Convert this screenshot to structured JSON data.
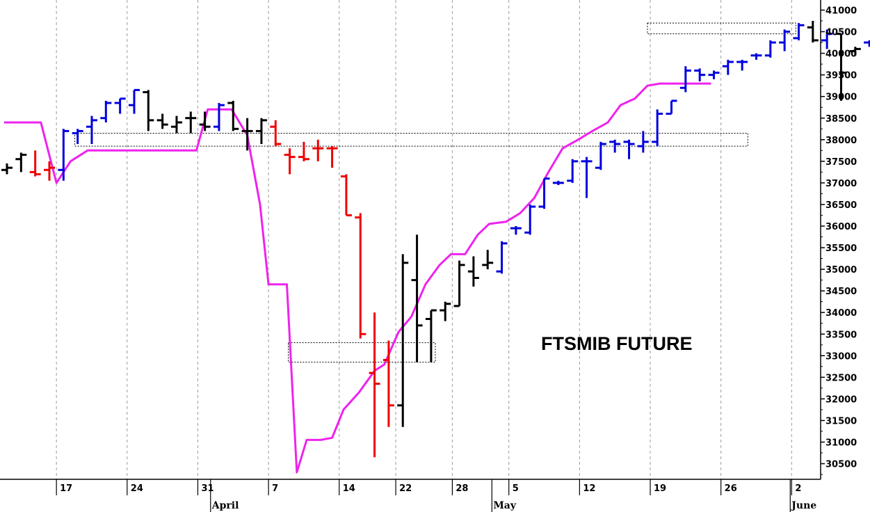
{
  "chart_data": {
    "type": "bar",
    "title": "FTSMIB FUTURE",
    "xlabel": "",
    "ylabel": "",
    "ylim": [
      30100,
      41100
    ],
    "grid": true,
    "y_ticks": [
      30500,
      31000,
      31500,
      32000,
      32500,
      33000,
      33500,
      34000,
      34500,
      35000,
      35500,
      36000,
      36500,
      37000,
      37500,
      38000,
      38500,
      39000,
      39500,
      40000,
      40500,
      41000
    ],
    "x_ticks": [
      {
        "label": "17",
        "idx": 3.5
      },
      {
        "label": "24",
        "idx": 8.5
      },
      {
        "label": "31",
        "idx": 13.5
      },
      {
        "label": "7",
        "idx": 18.5
      },
      {
        "label": "14",
        "idx": 23.5
      },
      {
        "label": "22",
        "idx": 27.5
      },
      {
        "label": "28",
        "idx": 31.5
      },
      {
        "label": "5",
        "idx": 35.5
      },
      {
        "label": "12",
        "idx": 40.5
      },
      {
        "label": "19",
        "idx": 45.5
      },
      {
        "label": "26",
        "idx": 50.5
      },
      {
        "label": "2",
        "idx": 55.5
      }
    ],
    "month_labels": [
      {
        "label": "April",
        "idx": 14.4
      },
      {
        "label": "May",
        "idx": 34.3
      },
      {
        "label": "June",
        "idx": 55.4
      }
    ],
    "series": [
      {
        "kind": "ohlc",
        "colors": {
          "up": "#0000dd",
          "neutral": "#000000",
          "down": "#ee0000"
        },
        "bars": [
          {
            "o": 37300,
            "h": 37450,
            "l": 37200,
            "c": 37350,
            "k": "neutral"
          },
          {
            "o": 37550,
            "h": 37700,
            "l": 37250,
            "c": 37650,
            "k": "neutral"
          },
          {
            "o": 37250,
            "h": 37750,
            "l": 37150,
            "c": 37200,
            "k": "down"
          },
          {
            "o": 37300,
            "h": 37500,
            "l": 37050,
            "c": 37350,
            "k": "down"
          },
          {
            "o": 37300,
            "h": 38250,
            "l": 37050,
            "c": 38200,
            "k": "up"
          },
          {
            "o": 38150,
            "h": 38250,
            "l": 37900,
            "c": 38200,
            "k": "up"
          },
          {
            "o": 38300,
            "h": 38550,
            "l": 37900,
            "c": 38450,
            "k": "up"
          },
          {
            "o": 38500,
            "h": 38900,
            "l": 38400,
            "c": 38850,
            "k": "up"
          },
          {
            "o": 38850,
            "h": 38950,
            "l": 38600,
            "c": 38950,
            "k": "up"
          },
          {
            "o": 38800,
            "h": 39150,
            "l": 38600,
            "c": 39150,
            "k": "up"
          },
          {
            "o": 39100,
            "h": 39150,
            "l": 38200,
            "c": 38450,
            "k": "neutral"
          },
          {
            "o": 38450,
            "h": 38600,
            "l": 38250,
            "c": 38350,
            "k": "neutral"
          },
          {
            "o": 38300,
            "h": 38550,
            "l": 38150,
            "c": 38400,
            "k": "neutral"
          },
          {
            "o": 38500,
            "h": 38650,
            "l": 38150,
            "c": 38500,
            "k": "neutral"
          },
          {
            "o": 38350,
            "h": 38650,
            "l": 38200,
            "c": 38300,
            "k": "neutral"
          },
          {
            "o": 38300,
            "h": 38850,
            "l": 38200,
            "c": 38800,
            "k": "up"
          },
          {
            "o": 38850,
            "h": 38900,
            "l": 38200,
            "c": 38250,
            "k": "neutral"
          },
          {
            "o": 38200,
            "h": 38500,
            "l": 37750,
            "c": 38200,
            "k": "neutral"
          },
          {
            "o": 38200,
            "h": 38500,
            "l": 37900,
            "c": 38450,
            "k": "neutral"
          },
          {
            "o": 38300,
            "h": 38450,
            "l": 37850,
            "c": 37900,
            "k": "down"
          },
          {
            "o": 37650,
            "h": 37800,
            "l": 37200,
            "c": 37600,
            "k": "down"
          },
          {
            "o": 37600,
            "h": 37950,
            "l": 37500,
            "c": 37550,
            "k": "down"
          },
          {
            "o": 37800,
            "h": 38000,
            "l": 37500,
            "c": 37800,
            "k": "down"
          },
          {
            "o": 37800,
            "h": 37850,
            "l": 37350,
            "c": 37800,
            "k": "down"
          },
          {
            "o": 37150,
            "h": 37200,
            "l": 36250,
            "c": 36250,
            "k": "down"
          },
          {
            "o": 36200,
            "h": 36300,
            "l": 33400,
            "c": 33500,
            "k": "down"
          },
          {
            "o": 32600,
            "h": 34000,
            "l": 30650,
            "c": 32350,
            "k": "down"
          },
          {
            "o": 32900,
            "h": 33350,
            "l": 31350,
            "c": 31850,
            "k": "down"
          },
          {
            "o": 31850,
            "h": 35350,
            "l": 31350,
            "c": 35150,
            "k": "neutral"
          },
          {
            "o": 34750,
            "h": 35800,
            "l": 32850,
            "c": 33700,
            "k": "neutral"
          },
          {
            "o": 33850,
            "h": 34050,
            "l": 32850,
            "c": 34050,
            "k": "neutral"
          },
          {
            "o": 34050,
            "h": 34250,
            "l": 33800,
            "c": 34200,
            "k": "neutral"
          },
          {
            "o": 34150,
            "h": 35200,
            "l": 34150,
            "c": 35100,
            "k": "neutral"
          },
          {
            "o": 34950,
            "h": 35300,
            "l": 34600,
            "c": 34800,
            "k": "neutral"
          },
          {
            "o": 35100,
            "h": 35450,
            "l": 35000,
            "c": 35150,
            "k": "neutral"
          },
          {
            "o": 34950,
            "h": 35650,
            "l": 34900,
            "c": 35600,
            "k": "up"
          },
          {
            "o": 35950,
            "h": 36000,
            "l": 35800,
            "c": 35950,
            "k": "up"
          },
          {
            "o": 35850,
            "h": 36500,
            "l": 35800,
            "c": 36450,
            "k": "up"
          },
          {
            "o": 36450,
            "h": 37100,
            "l": 36400,
            "c": 37100,
            "k": "up"
          },
          {
            "o": 37000,
            "h": 37050,
            "l": 36950,
            "c": 37000,
            "k": "up"
          },
          {
            "o": 37050,
            "h": 37550,
            "l": 37000,
            "c": 37500,
            "k": "up"
          },
          {
            "o": 37500,
            "h": 37600,
            "l": 36650,
            "c": 37500,
            "k": "up"
          },
          {
            "o": 37350,
            "h": 37950,
            "l": 37300,
            "c": 37900,
            "k": "up"
          },
          {
            "o": 37950,
            "h": 38000,
            "l": 37700,
            "c": 37900,
            "k": "up"
          },
          {
            "o": 37950,
            "h": 38000,
            "l": 37550,
            "c": 37900,
            "k": "up"
          },
          {
            "o": 37850,
            "h": 38200,
            "l": 37700,
            "c": 37950,
            "k": "up"
          },
          {
            "o": 37950,
            "h": 38700,
            "l": 37850,
            "c": 38600,
            "k": "up"
          },
          {
            "o": 38600,
            "h": 38900,
            "l": 38600,
            "c": 38900,
            "k": "up"
          },
          {
            "o": 39200,
            "h": 39700,
            "l": 39100,
            "c": 39600,
            "k": "up"
          },
          {
            "o": 39600,
            "h": 39650,
            "l": 39350,
            "c": 39500,
            "k": "up"
          },
          {
            "o": 39500,
            "h": 39600,
            "l": 39400,
            "c": 39550,
            "k": "up"
          },
          {
            "o": 39700,
            "h": 39850,
            "l": 39500,
            "c": 39800,
            "k": "up"
          },
          {
            "o": 39800,
            "h": 39850,
            "l": 39600,
            "c": 39800,
            "k": "up"
          },
          {
            "o": 39950,
            "h": 40000,
            "l": 39850,
            "c": 39950,
            "k": "up"
          },
          {
            "o": 39950,
            "h": 40300,
            "l": 39900,
            "c": 40250,
            "k": "up"
          },
          {
            "o": 40250,
            "h": 40550,
            "l": 40050,
            "c": 40500,
            "k": "up"
          },
          {
            "o": 40350,
            "h": 40700,
            "l": 40300,
            "c": 40650,
            "k": "up"
          },
          {
            "o": 40600,
            "h": 40750,
            "l": 40250,
            "c": 40300,
            "k": "neutral"
          },
          {
            "o": 40300,
            "h": 40550,
            "l": 40100,
            "c": 40450,
            "k": "up"
          },
          {
            "o": 40450,
            "h": 40450,
            "l": 38900,
            "c": 39550,
            "k": "neutral"
          },
          {
            "o": 40050,
            "h": 40150,
            "l": 39950,
            "c": 40100,
            "k": "neutral"
          },
          {
            "o": 40250,
            "h": 40300,
            "l": 40150,
            "c": 40250,
            "k": "up"
          }
        ]
      },
      {
        "kind": "line",
        "color": "#ee22ee",
        "points": [
          [
            -0.2,
            38400
          ],
          [
            2.4,
            38400
          ],
          [
            3.5,
            37000
          ],
          [
            4.5,
            37500
          ],
          [
            5.7,
            37750
          ],
          [
            13.4,
            37750
          ],
          [
            14.2,
            38700
          ],
          [
            15.9,
            38700
          ],
          [
            17.0,
            38100
          ],
          [
            17.9,
            36500
          ],
          [
            18.5,
            34650
          ],
          [
            19.8,
            34650
          ],
          [
            20.5,
            30300
          ],
          [
            21.2,
            31050
          ],
          [
            22.2,
            31050
          ],
          [
            23.0,
            31100
          ],
          [
            23.8,
            31750
          ],
          [
            24.9,
            32150
          ],
          [
            26.0,
            32650
          ],
          [
            26.7,
            32800
          ],
          [
            27.7,
            33550
          ],
          [
            28.6,
            33900
          ],
          [
            29.6,
            34650
          ],
          [
            30.6,
            35100
          ],
          [
            31.4,
            35350
          ],
          [
            32.4,
            35350
          ],
          [
            33.3,
            35800
          ],
          [
            34.1,
            36050
          ],
          [
            35.3,
            36100
          ],
          [
            36.3,
            36300
          ],
          [
            37.3,
            36650
          ],
          [
            38.3,
            37250
          ],
          [
            39.3,
            37800
          ],
          [
            40.4,
            38000
          ],
          [
            41.4,
            38200
          ],
          [
            42.5,
            38400
          ],
          [
            43.4,
            38800
          ],
          [
            44.4,
            38950
          ],
          [
            45.3,
            39250
          ],
          [
            46.2,
            39300
          ],
          [
            49.8,
            39300
          ]
        ]
      }
    ],
    "annotations": [
      {
        "type": "box",
        "x0": 4.8,
        "x1": 52.4,
        "y0": 37850,
        "y1": 38150
      },
      {
        "type": "box",
        "x0": 19.9,
        "x1": 30.3,
        "y0": 32850,
        "y1": 33300
      },
      {
        "type": "box",
        "x0": 45.3,
        "x1": 55.8,
        "y0": 40450,
        "y1": 40700
      }
    ]
  }
}
